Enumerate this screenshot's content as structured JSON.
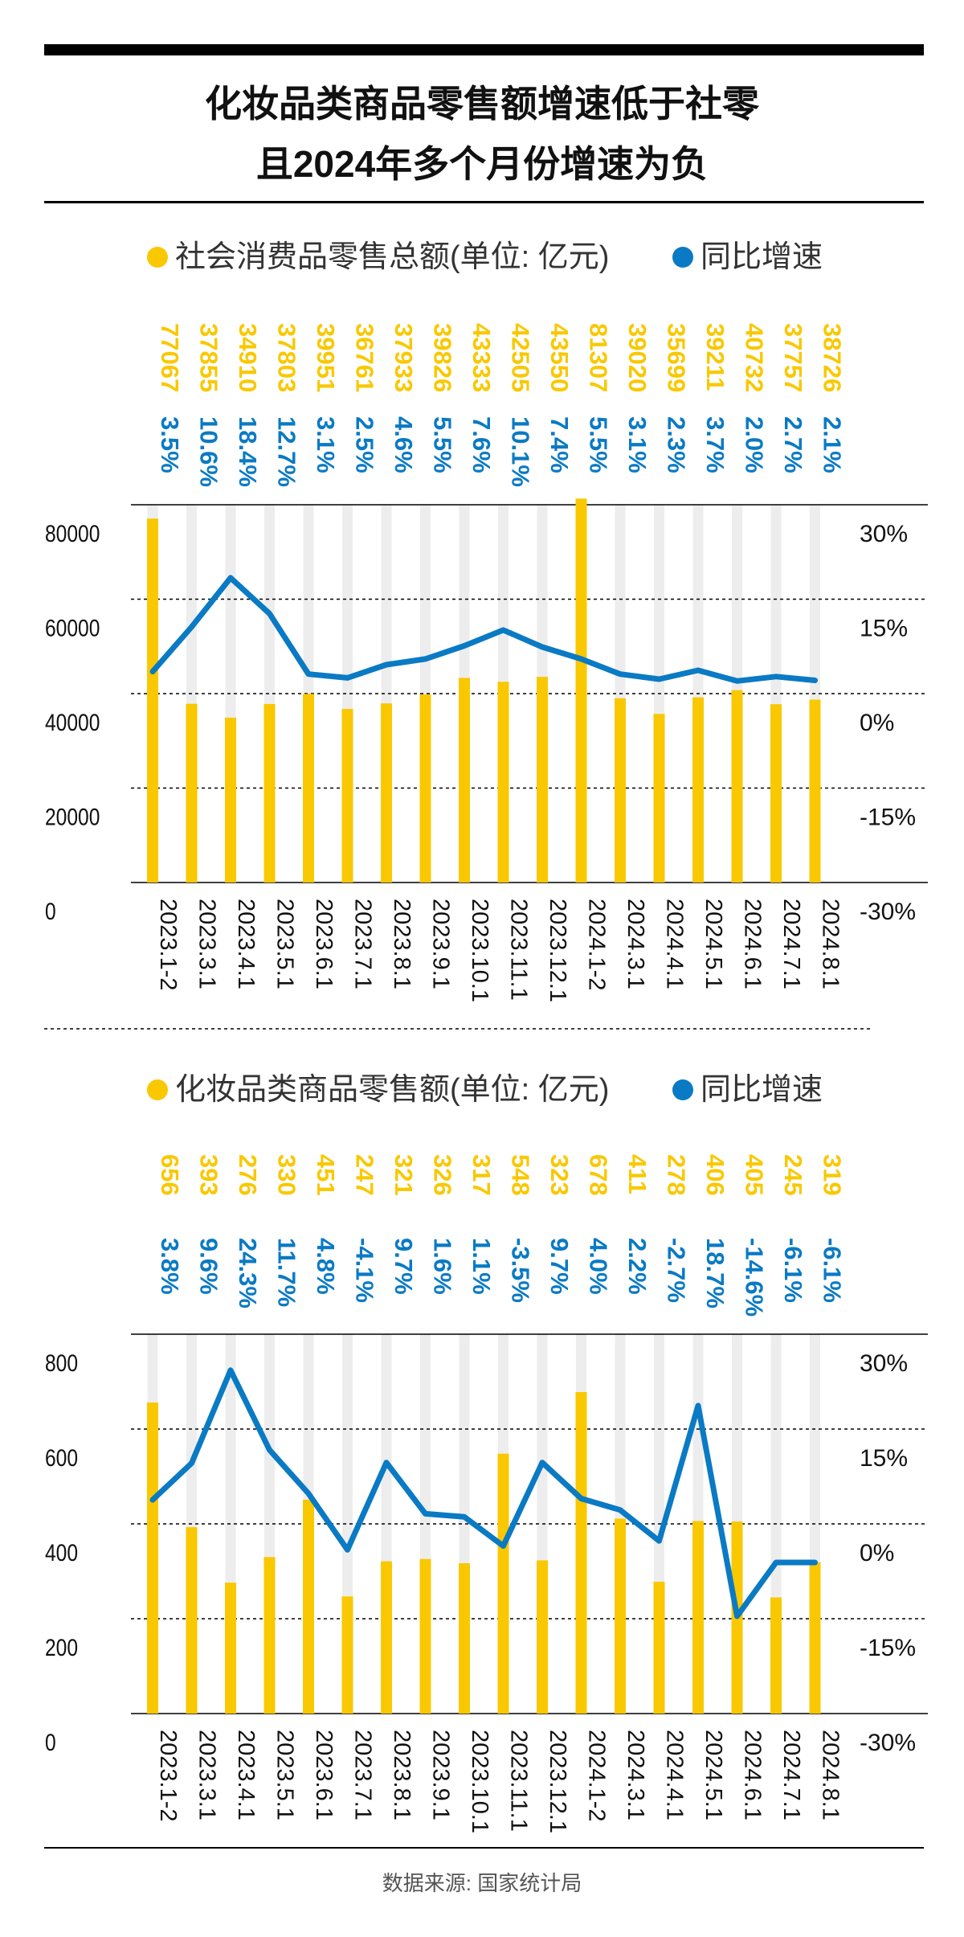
{
  "title": {
    "line1": "化妆品类商品零售额增速低于社零",
    "line2": "且2024年多个月份增速为负"
  },
  "source": "数据来源: 国家统计局",
  "colors": {
    "bar": "#F9C800",
    "line": "#0A7AC4",
    "track": "#EDEDED",
    "text": "#111111",
    "axis": "#000000"
  },
  "chart_data": [
    {
      "type": "bar",
      "legend": [
        {
          "label": "社会消费品零售总额(单位: 亿元)",
          "color": "#F9C800"
        },
        {
          "label": "同比增速",
          "color": "#0A7AC4"
        }
      ],
      "categories": [
        "2023.1-2",
        "2023.3.1",
        "2023.4.1",
        "2023.5.1",
        "2023.6.1",
        "2023.7.1",
        "2023.8.1",
        "2023.9.1",
        "2023.10.1",
        "2023.11.1",
        "2023.12.1",
        "2024.1-2",
        "2024.3.1",
        "2024.4.1",
        "2024.5.1",
        "2024.6.1",
        "2024.7.1",
        "2024.8.1"
      ],
      "series": [
        {
          "name": "社会消费品零售总额(单位: 亿元)",
          "type": "bar",
          "axis": "left",
          "values": [
            77067,
            37855,
            34910,
            37803,
            39951,
            36761,
            37933,
            39826,
            43333,
            42505,
            43550,
            81307,
            39020,
            35699,
            39211,
            40732,
            37757,
            38726
          ]
        },
        {
          "name": "同比增速",
          "type": "line",
          "axis": "right",
          "unit": "%",
          "values": [
            3.5,
            10.6,
            18.4,
            12.7,
            3.1,
            2.5,
            4.6,
            5.5,
            7.6,
            10.1,
            7.4,
            5.5,
            3.1,
            2.3,
            3.7,
            2.0,
            2.7,
            2.1
          ]
        }
      ],
      "value_labels": [
        "77067",
        "37855",
        "34910",
        "37803",
        "39951",
        "36761",
        "37933",
        "39826",
        "43333",
        "42505",
        "43550",
        "81307",
        "39020",
        "35699",
        "39211",
        "40732",
        "37757",
        "38726"
      ],
      "rate_labels": [
        "3.5%",
        "10.6%",
        "18.4%",
        "12.7%",
        "3.1%",
        "2.5%",
        "4.6%",
        "5.5%",
        "7.6%",
        "10.1%",
        "7.4%",
        "5.5%",
        "3.1%",
        "2.3%",
        "3.7%",
        "2.0%",
        "2.7%",
        "2.1%"
      ],
      "left_axis": {
        "ylim": [
          0,
          80000
        ],
        "ticks": [
          "0",
          "20000",
          "40000",
          "60000",
          "80000"
        ]
      },
      "right_axis": {
        "ylim": [
          -30,
          30
        ],
        "ticks": [
          "-30%",
          "-15%",
          "0%",
          "15%",
          "30%"
        ]
      }
    },
    {
      "type": "bar",
      "legend": [
        {
          "label": "化妆品类商品零售额(单位: 亿元)",
          "color": "#F9C800"
        },
        {
          "label": "同比增速",
          "color": "#0A7AC4"
        }
      ],
      "categories": [
        "2023.1-2",
        "2023.3.1",
        "2023.4.1",
        "2023.5.1",
        "2023.6.1",
        "2023.7.1",
        "2023.8.1",
        "2023.9.1",
        "2023.10.1",
        "2023.11.1",
        "2023.12.1",
        "2024.1-2",
        "2024.3.1",
        "2024.4.1",
        "2024.5.1",
        "2024.6.1",
        "2024.7.1",
        "2024.8.1"
      ],
      "series": [
        {
          "name": "化妆品类商品零售额(单位: 亿元)",
          "type": "bar",
          "axis": "left",
          "values": [
            656,
            393,
            276,
            330,
            451,
            247,
            321,
            326,
            317,
            548,
            323,
            678,
            411,
            278,
            406,
            405,
            245,
            319
          ]
        },
        {
          "name": "同比增速",
          "type": "line",
          "axis": "right",
          "unit": "%",
          "values": [
            3.8,
            9.6,
            24.3,
            11.7,
            4.8,
            -4.1,
            9.7,
            1.6,
            1.1,
            -3.5,
            9.7,
            4.0,
            2.2,
            -2.7,
            18.7,
            -14.6,
            -6.1,
            -6.1
          ]
        }
      ],
      "value_labels": [
        "656",
        "393",
        "276",
        "330",
        "451",
        "247",
        "321",
        "326",
        "317",
        "548",
        "323",
        "678",
        "411",
        "278",
        "406",
        "405",
        "245",
        "319"
      ],
      "rate_labels": [
        "3.8%",
        "9.6%",
        "24.3%",
        "11.7%",
        "4.8%",
        "-4.1%",
        "9.7%",
        "1.6%",
        "1.1%",
        "-3.5%",
        "9.7%",
        "4.0%",
        "2.2%",
        "-2.7%",
        "18.7%",
        "-14.6%",
        "-6.1%",
        "-6.1%"
      ],
      "left_axis": {
        "ylim": [
          0,
          800
        ],
        "ticks": [
          "0",
          "200",
          "400",
          "600",
          "800"
        ]
      },
      "right_axis": {
        "ylim": [
          -30,
          30
        ],
        "ticks": [
          "-30%",
          "-15%",
          "0%",
          "15%",
          "30%"
        ]
      }
    }
  ]
}
